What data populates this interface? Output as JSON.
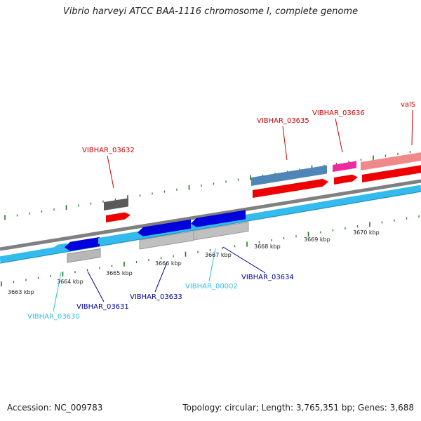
{
  "title": "Vibrio harveyi ATCC BAA-1116 chromosome I, complete genome",
  "footer": {
    "accession": "Accession: NC_009783",
    "summary": "Topology: circular; Length: 3,765,351 bp; Genes: 3,688"
  },
  "colors": {
    "backbone_forward": "#808080",
    "backbone_reverse": "#33bbee",
    "tick": "#1f7a1f",
    "label_red": "#cc0000",
    "label_blue": "#000099",
    "label_cyan": "#33bbdd"
  },
  "scale": {
    "unit": "kbp",
    "ticks": [
      {
        "label": "3663 kbp"
      },
      {
        "label": "3664 kbp"
      },
      {
        "label": "3665 kbp"
      },
      {
        "label": "3666 kbp"
      },
      {
        "label": "3667 kbp"
      },
      {
        "label": "3668 kbp"
      },
      {
        "label": "3669 kbp"
      },
      {
        "label": "3670 kbp"
      }
    ]
  },
  "gene_labels": [
    {
      "name": "VIBHAR_03632",
      "color": "#cc0000"
    },
    {
      "name": "VIBHAR_03635",
      "color": "#cc0000"
    },
    {
      "name": "VIBHAR_03636",
      "color": "#cc0000"
    },
    {
      "name": "valS",
      "color": "#cc0000"
    },
    {
      "name": "VIBHAR_03630",
      "color": "#33bbdd"
    },
    {
      "name": "VIBHAR_03631",
      "color": "#000099"
    },
    {
      "name": "VIBHAR_03633",
      "color": "#000099"
    },
    {
      "name": "VIBHAR_00002",
      "color": "#33bbdd"
    },
    {
      "name": "VIBHAR_03634",
      "color": "#000099"
    }
  ]
}
